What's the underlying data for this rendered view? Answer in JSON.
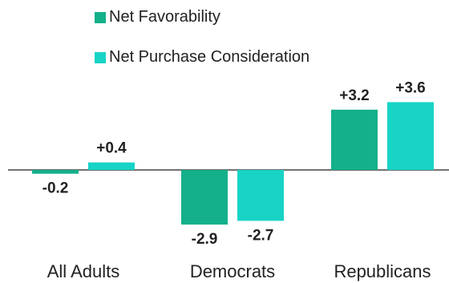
{
  "chart_data": {
    "type": "bar",
    "title": "",
    "xlabel": "",
    "ylabel": "",
    "categories": [
      "All Adults",
      "Democrats",
      "Republicans"
    ],
    "series": [
      {
        "name": "Net Favorability",
        "values": [
          -0.2,
          -2.9,
          3.2
        ],
        "labels": [
          "-0.2",
          "-2.9",
          "+3.2"
        ],
        "color": "#14b08a"
      },
      {
        "name": "Net Purchase Consideration",
        "values": [
          0.4,
          -2.7,
          3.6
        ],
        "labels": [
          "+0.4",
          "-2.7",
          "+3.6"
        ],
        "color": "#17d4c6"
      }
    ],
    "ylim": [
      -4,
      4
    ],
    "grid": false,
    "legend_position": "top"
  }
}
